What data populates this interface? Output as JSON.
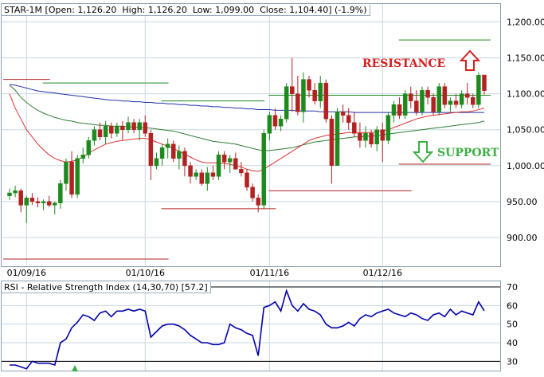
{
  "header": {
    "symbol_label": "STAR-1M",
    "ohlc_text": "[Open: 1,126.20  High: 1,126.20  Low: 1,099.00  Close: 1,104.40] (-1.9%)"
  },
  "rsi_header": {
    "title": "RSI - Relative Strength Index (14,30,70)",
    "value_text": "[57.2]"
  },
  "annotations": {
    "resistance": "RESISTANCE",
    "support": "SUPPORT"
  },
  "colors": {
    "up": "#1e8a1e",
    "down": "#b22222",
    "sma_short": "#dd3333",
    "sma_mid": "#2e7d32",
    "sma_long": "#2233aa",
    "rsi_line": "#0000aa",
    "resistance_text": "#d32020",
    "support_text": "#3cb043",
    "grid": "#c8d8e4"
  },
  "chart_data": [
    {
      "type": "candlestick",
      "title": "STAR-1M",
      "x_ticks": [
        "01/09/16",
        "01/10/16",
        "01/11/16",
        "01/12/16"
      ],
      "y_ticks": [
        "900.00",
        "950.00",
        "1,000.00",
        "1,050.00",
        "1,100.00",
        "1,150.00",
        "1,200.00"
      ],
      "ylim": [
        860,
        1225
      ],
      "grid": true,
      "candles": [
        [
          958,
          968,
          952,
          962
        ],
        [
          962,
          972,
          956,
          965
        ],
        [
          965,
          968,
          935,
          945
        ],
        [
          945,
          958,
          920,
          955
        ],
        [
          955,
          962,
          945,
          950
        ],
        [
          950,
          956,
          942,
          948
        ],
        [
          948,
          953,
          938,
          950
        ],
        [
          950,
          958,
          942,
          945
        ],
        [
          945,
          950,
          932,
          948
        ],
        [
          948,
          980,
          940,
          975
        ],
        [
          975,
          1010,
          965,
          1005
        ],
        [
          1005,
          1020,
          955,
          960
        ],
        [
          960,
          1015,
          955,
          1010
        ],
        [
          1010,
          1025,
          1003,
          1015
        ],
        [
          1015,
          1040,
          1010,
          1035
        ],
        [
          1035,
          1055,
          1028,
          1050
        ],
        [
          1050,
          1060,
          1035,
          1040
        ],
        [
          1040,
          1062,
          1030,
          1055
        ],
        [
          1055,
          1060,
          1038,
          1045
        ],
        [
          1045,
          1060,
          1040,
          1055
        ],
        [
          1055,
          1062,
          1035,
          1050
        ],
        [
          1050,
          1068,
          1045,
          1060
        ],
        [
          1060,
          1065,
          1045,
          1050
        ],
        [
          1050,
          1065,
          1035,
          1060
        ],
        [
          1060,
          1070,
          1040,
          1045
        ],
        [
          1045,
          1050,
          980,
          1000
        ],
        [
          1000,
          1018,
          995,
          1010
        ],
        [
          1010,
          1030,
          1000,
          1025
        ],
        [
          1025,
          1038,
          1010,
          1030
        ],
        [
          1030,
          1035,
          1005,
          1010
        ],
        [
          1010,
          1028,
          995,
          1020
        ],
        [
          1020,
          1025,
          985,
          1000
        ],
        [
          1000,
          1005,
          975,
          985
        ],
        [
          985,
          995,
          980,
          990
        ],
        [
          990,
          995,
          972,
          975
        ],
        [
          975,
          998,
          965,
          990
        ],
        [
          990,
          1000,
          980,
          985
        ],
        [
          985,
          1020,
          980,
          1015
        ],
        [
          1015,
          1020,
          995,
          1005
        ],
        [
          1005,
          1015,
          990,
          1010
        ],
        [
          1010,
          1018,
          995,
          995
        ],
        [
          995,
          1005,
          985,
          990
        ],
        [
          990,
          995,
          965,
          970
        ],
        [
          970,
          975,
          950,
          955
        ],
        [
          955,
          960,
          935,
          945
        ],
        [
          945,
          1050,
          940,
          1045
        ],
        [
          1045,
          1075,
          1035,
          1070
        ],
        [
          1070,
          1080,
          1050,
          1055
        ],
        [
          1055,
          1070,
          1048,
          1065
        ],
        [
          1065,
          1115,
          1060,
          1110
        ],
        [
          1110,
          1150,
          1075,
          1100
        ],
        [
          1100,
          1125,
          1070,
          1075
        ],
        [
          1075,
          1130,
          1060,
          1120
        ],
        [
          1120,
          1125,
          1095,
          1105
        ],
        [
          1105,
          1115,
          1085,
          1090
        ],
        [
          1090,
          1125,
          1080,
          1115
        ],
        [
          1115,
          1120,
          1060,
          1065
        ],
        [
          1065,
          1070,
          975,
          1000
        ],
        [
          1000,
          1080,
          1000,
          1075
        ],
        [
          1075,
          1085,
          1060,
          1070
        ],
        [
          1070,
          1080,
          1050,
          1060
        ],
        [
          1060,
          1075,
          1040,
          1045
        ],
        [
          1045,
          1060,
          1025,
          1035
        ],
        [
          1035,
          1055,
          1025,
          1045
        ],
        [
          1045,
          1050,
          1025,
          1030
        ],
        [
          1030,
          1055,
          1020,
          1050
        ],
        [
          1050,
          1060,
          1005,
          1035
        ],
        [
          1035,
          1075,
          1030,
          1070
        ],
        [
          1070,
          1090,
          1060,
          1085
        ],
        [
          1085,
          1095,
          1065,
          1070
        ],
        [
          1070,
          1105,
          1065,
          1100
        ],
        [
          1100,
          1110,
          1080,
          1090
        ],
        [
          1090,
          1105,
          1070,
          1075
        ],
        [
          1075,
          1110,
          1070,
          1105
        ],
        [
          1105,
          1110,
          1085,
          1095
        ],
        [
          1095,
          1100,
          1070,
          1075
        ],
        [
          1075,
          1115,
          1070,
          1110
        ],
        [
          1110,
          1115,
          1080,
          1085
        ],
        [
          1085,
          1095,
          1075,
          1090
        ],
        [
          1090,
          1100,
          1080,
          1085
        ],
        [
          1085,
          1105,
          1080,
          1100
        ],
        [
          1100,
          1115,
          1085,
          1095
        ],
        [
          1095,
          1100,
          1080,
          1085
        ],
        [
          1085,
          1130,
          1080,
          1126
        ],
        [
          1126.2,
          1126.2,
          1099,
          1104.4
        ]
      ],
      "sma_short": [
        1100,
        1080,
        1065,
        1050,
        1040,
        1030,
        1022,
        1015,
        1010,
        1007,
        1005,
        1006,
        1008,
        1012,
        1017,
        1022,
        1026,
        1030,
        1032,
        1034,
        1035,
        1036,
        1037,
        1038,
        1038,
        1036,
        1033,
        1030,
        1027,
        1024,
        1020,
        1016,
        1012,
        1008,
        1005,
        1004,
        1004,
        1004,
        1003,
        1002,
        1000,
        998,
        995,
        993,
        992,
        995,
        1000,
        1005,
        1010,
        1015,
        1020,
        1025,
        1030,
        1035,
        1038,
        1040,
        1042,
        1043,
        1044,
        1045,
        1046,
        1046,
        1046,
        1046,
        1046,
        1047,
        1048,
        1050,
        1053,
        1056,
        1059,
        1062,
        1065,
        1067,
        1069,
        1070,
        1071,
        1072,
        1073,
        1074,
        1075,
        1075,
        1076,
        1078,
        1080
      ],
      "sma_mid": [
        1112,
        1105,
        1095,
        1088,
        1082,
        1077,
        1073,
        1070,
        1067,
        1065,
        1063,
        1062,
        1060,
        1059,
        1058,
        1057,
        1056,
        1056,
        1055,
        1055,
        1055,
        1054,
        1054,
        1053,
        1053,
        1052,
        1051,
        1050,
        1049,
        1048,
        1046,
        1044,
        1042,
        1040,
        1038,
        1036,
        1034,
        1033,
        1032,
        1031,
        1030,
        1028,
        1026,
        1024,
        1022,
        1021,
        1021,
        1022,
        1023,
        1024,
        1025,
        1027,
        1029,
        1031,
        1033,
        1034,
        1035,
        1036,
        1037,
        1038,
        1039,
        1040,
        1040,
        1041,
        1041,
        1042,
        1043,
        1044,
        1045,
        1046,
        1047,
        1048,
        1049,
        1050,
        1051,
        1052,
        1053,
        1054,
        1055,
        1056,
        1057,
        1058,
        1059,
        1060,
        1062
      ],
      "sma_long": [
        1113,
        1112,
        1110,
        1108,
        1106,
        1104,
        1103,
        1102,
        1101,
        1100,
        1099,
        1098,
        1097,
        1096,
        1095,
        1094,
        1093,
        1092,
        1091,
        1091,
        1090,
        1090,
        1089,
        1089,
        1088,
        1088,
        1087,
        1087,
        1086,
        1086,
        1085,
        1085,
        1084,
        1084,
        1083,
        1083,
        1082,
        1082,
        1081,
        1081,
        1080,
        1080,
        1079,
        1079,
        1078,
        1078,
        1078,
        1077,
        1077,
        1077,
        1077,
        1076,
        1076,
        1076,
        1076,
        1075,
        1075,
        1075,
        1075,
        1075,
        1075,
        1074,
        1074,
        1074,
        1074,
        1074,
        1074,
        1074,
        1074,
        1074,
        1074,
        1074,
        1074,
        1074,
        1074,
        1074,
        1074,
        1074,
        1074,
        1074,
        1074,
        1074,
        1074,
        1074,
        1074
      ],
      "resistance_lines": [
        {
          "y": 1120,
          "x": [
            0,
            6
          ],
          "color": "#b22222"
        },
        {
          "y": 1115,
          "x": [
            7,
            27
          ],
          "color": "#1e8a1e"
        },
        {
          "y": 1090,
          "x": [
            28,
            44
          ],
          "color": "#1e8a1e"
        },
        {
          "y": 1098,
          "x": [
            47,
            84
          ],
          "color": "#1e8a1e"
        },
        {
          "y": 1175,
          "x": [
            70,
            84
          ],
          "color": "#1e8a1e"
        }
      ],
      "support_lines": [
        {
          "y": 870,
          "x": [
            0,
            27
          ],
          "color": "#b22222"
        },
        {
          "y": 940,
          "x": [
            28,
            46
          ],
          "color": "#b22222"
        },
        {
          "y": 965,
          "x": [
            47,
            70
          ],
          "color": "#b22222"
        },
        {
          "y": 1002,
          "x": [
            70,
            84
          ],
          "color": "#b22222"
        }
      ]
    },
    {
      "type": "line",
      "title": "RSI - Relative Strength Index (14,30,70)",
      "y_ticks": [
        "30",
        "40",
        "50",
        "60",
        "70"
      ],
      "ylim": [
        25,
        73
      ],
      "levels": [
        30,
        70
      ],
      "values": [
        28,
        28,
        27,
        26,
        30,
        29,
        29,
        29,
        28,
        40,
        42,
        48,
        51,
        55,
        54,
        52,
        56,
        57,
        54,
        57,
        57,
        58,
        57,
        58,
        57,
        43,
        46,
        49,
        50,
        50,
        49,
        47,
        44,
        42,
        40,
        40,
        39,
        39,
        40,
        50,
        48,
        47,
        45,
        44,
        33,
        59,
        60,
        62,
        57,
        68,
        60,
        57,
        61,
        58,
        57,
        55,
        50,
        48,
        48,
        49,
        51,
        49,
        53,
        55,
        54,
        56,
        57,
        58,
        56,
        55,
        54,
        56,
        55,
        53,
        52,
        55,
        56,
        54,
        58,
        55,
        57,
        56,
        55,
        62,
        57.2
      ]
    }
  ]
}
